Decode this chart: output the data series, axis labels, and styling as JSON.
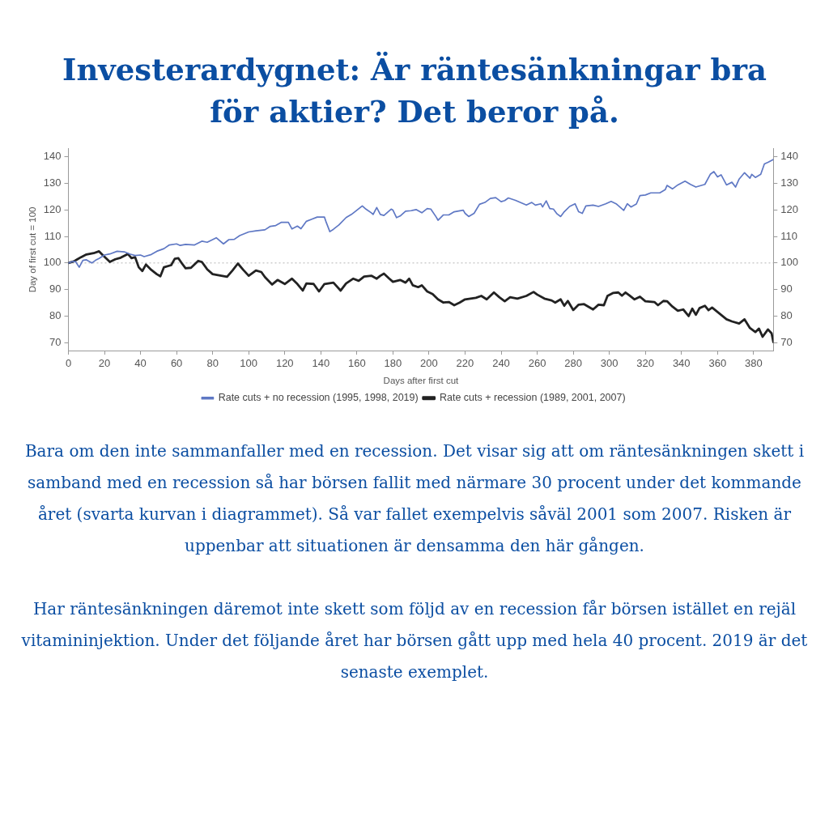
{
  "chart_data": {
    "type": "line",
    "title": "Investerardygnet: Är räntesänkningar bra för aktier? Det beror på.",
    "xlabel": "Days after first cut",
    "ylabel": "Day of first cut = 100",
    "xlim": [
      0,
      391
    ],
    "xticks": [
      0,
      20,
      40,
      60,
      80,
      100,
      120,
      140,
      160,
      180,
      200,
      220,
      240,
      260,
      280,
      300,
      320,
      340,
      360,
      380
    ],
    "ylim": [
      67,
      143
    ],
    "yticks": [
      70,
      80,
      90,
      100,
      110,
      120,
      130,
      140
    ],
    "y2lim": [
      67,
      143
    ],
    "y2ticks": [
      70,
      80,
      90,
      100,
      110,
      120,
      130,
      140
    ],
    "grid": false,
    "legend": "bottom",
    "ref_lines": [
      {
        "axis": "y",
        "value": 100,
        "color": "#b4b4b4",
        "line_style": "dotted"
      }
    ],
    "series": [
      {
        "name": "Rate cuts + no recession (1995, 1998, 2019)",
        "color": "#5f78c4",
        "x": [
          0,
          2,
          4,
          6,
          8,
          10,
          13,
          15,
          17,
          20,
          23,
          27,
          31,
          34,
          37,
          40,
          42,
          46,
          49,
          53,
          56,
          60,
          62,
          65,
          70,
          74,
          77,
          82,
          86,
          89,
          92,
          95,
          100,
          104,
          109,
          112,
          115,
          118,
          122,
          124,
          127,
          129,
          132,
          135,
          138,
          142,
          143,
          145,
          147,
          150,
          154,
          157,
          160,
          163,
          165,
          168,
          169,
          171,
          173,
          175,
          179,
          180,
          182,
          184,
          187,
          190,
          193,
          196,
          199,
          201,
          204,
          205,
          208,
          211,
          214,
          219,
          220,
          222,
          225,
          228,
          231,
          234,
          237,
          240,
          242,
          244,
          248,
          254,
          257,
          259,
          262,
          263,
          265,
          267,
          269,
          271,
          273,
          275,
          278,
          281,
          283,
          285,
          287,
          291,
          294,
          298,
          301,
          304,
          308,
          310,
          312,
          315,
          317,
          320,
          323,
          328,
          331,
          332,
          335,
          338,
          342,
          345,
          348,
          353,
          356,
          358,
          360,
          362,
          365,
          368,
          370,
          372,
          375,
          378,
          379,
          381,
          384,
          386,
          388,
          391
        ],
        "values": [
          100,
          100.5,
          100.5,
          98.4,
          101,
          101.2,
          100,
          101,
          101.7,
          103,
          103.4,
          104.4,
          104.2,
          103.4,
          102.8,
          103,
          102.4,
          103.2,
          104.4,
          105.4,
          106.8,
          107.2,
          106.6,
          107,
          106.8,
          108.2,
          107.8,
          109.5,
          107.2,
          108.8,
          108.9,
          110.3,
          111.7,
          112.1,
          112.5,
          113.8,
          114.1,
          115.3,
          115.3,
          112.8,
          113.9,
          112.9,
          115.7,
          116.5,
          117.3,
          117.3,
          115.3,
          111.8,
          112.7,
          114.3,
          117.1,
          118.3,
          119.9,
          121.5,
          120.3,
          118.9,
          118.3,
          120.9,
          118.3,
          117.9,
          120.3,
          119.9,
          117.1,
          117.7,
          119.5,
          119.7,
          120.1,
          118.9,
          120.5,
          120.3,
          117.3,
          116.1,
          118.1,
          118.1,
          119.3,
          119.9,
          118.7,
          117.5,
          118.7,
          122.1,
          122.8,
          124.3,
          124.6,
          123.1,
          123.5,
          124.5,
          123.6,
          121.8,
          122.8,
          121.8,
          122.3,
          121.1,
          123.4,
          120.5,
          120.3,
          118.5,
          117.5,
          119.3,
          121.3,
          122.3,
          119.3,
          118.7,
          121.5,
          121.8,
          121.3,
          122.3,
          123.2,
          122.2,
          119.8,
          122.3,
          121.1,
          122.2,
          125.4,
          125.6,
          126.4,
          126.4,
          127.6,
          129.2,
          127.9,
          129.4,
          130.8,
          129.6,
          128.6,
          129.6,
          133.4,
          134.4,
          132.4,
          133.2,
          129.4,
          130.4,
          128.6,
          131.6,
          134,
          131.9,
          133.4,
          132.2,
          133.4,
          137.3,
          137.9,
          139
        ]
      },
      {
        "name": "Rate cuts + recession (1989, 2001, 2007)",
        "color": "#222222",
        "x": [
          0,
          3,
          5,
          7,
          10,
          14,
          17,
          19,
          23,
          26,
          29,
          33,
          35,
          37,
          39,
          41,
          43,
          46,
          49,
          51,
          53,
          57,
          59,
          61,
          63,
          65,
          68,
          72,
          74,
          77,
          80,
          83,
          88,
          91,
          94,
          97,
          100,
          104,
          107,
          109,
          113,
          116,
          120,
          124,
          127,
          130,
          132,
          136,
          139,
          142,
          147,
          151,
          154,
          158,
          161,
          164,
          168,
          171,
          173,
          175,
          178,
          180,
          184,
          187,
          189,
          191,
          194,
          196,
          199,
          202,
          205,
          208,
          211,
          214,
          217,
          220,
          223,
          226,
          229,
          232,
          236,
          239,
          242,
          245,
          249,
          254,
          258,
          260,
          264,
          268,
          270,
          273,
          275,
          277,
          280,
          283,
          286,
          291,
          294,
          297,
          299,
          302,
          305,
          307,
          309,
          311,
          314,
          317,
          320,
          325,
          327,
          330,
          332,
          335,
          338,
          341,
          344,
          346,
          348,
          350,
          353,
          355,
          357,
          361,
          365,
          368,
          372,
          375,
          378,
          381,
          383,
          385,
          388,
          390,
          391
        ],
        "values": [
          100,
          100.6,
          101.4,
          102.2,
          103.2,
          103.7,
          104.4,
          103,
          100.4,
          101.4,
          102,
          103.4,
          101.8,
          102.2,
          98.4,
          97,
          99.4,
          97.4,
          95.8,
          95,
          98.4,
          99.2,
          101.6,
          101.8,
          99.8,
          98,
          98.2,
          100.8,
          100.4,
          97.6,
          95.8,
          95.4,
          94.8,
          97.2,
          99.8,
          97.4,
          95.2,
          97.2,
          96.6,
          94.7,
          91.9,
          93.6,
          92.1,
          94.1,
          92.1,
          89.6,
          92.3,
          92.1,
          89.3,
          92.1,
          92.6,
          89.6,
          92.3,
          94.1,
          93.3,
          94.9,
          95.2,
          94.1,
          95.2,
          96,
          94.1,
          92.9,
          93.6,
          92.6,
          94.1,
          91.6,
          90.9,
          91.6,
          89.3,
          88.3,
          86.3,
          85.1,
          85.3,
          84.1,
          85.1,
          86.3,
          86.6,
          86.9,
          87.6,
          86.3,
          88.9,
          87.1,
          85.6,
          87.1,
          86.6,
          87.6,
          89.1,
          88.1,
          86.6,
          85.9,
          85.1,
          86.3,
          83.9,
          85.7,
          82.3,
          84.3,
          84.5,
          82.5,
          84.3,
          84.1,
          87.6,
          88.7,
          88.9,
          87.7,
          88.9,
          87.9,
          86.3,
          87.3,
          85.6,
          85.3,
          84.1,
          85.7,
          85.6,
          83.6,
          82,
          82.5,
          80,
          82.8,
          80.5,
          83,
          83.9,
          82.2,
          83.2,
          81,
          78.8,
          78,
          77.2,
          78.8,
          75.5,
          74,
          75.3,
          72.2,
          75,
          73.5,
          70.2
        ]
      }
    ],
    "annotations": [
      "Bara om den inte sammanfaller med en recession. Det visar sig att om räntesänkningen skett i samband med en recession så har börsen fallit med närmare 30 procent under det kommande året (svarta kurvan i diagrammet). Så var fallet exempelvis såväl 2001 som 2007. Risken är uppenbar att situationen är densamma den här gången.",
      "Har räntesänkningen däremot inte skett som följd av en recession får börsen istället en rejäl vitamininjektion. Under det följande året har börsen gått upp med hela 40 procent. 2019 är det senaste exemplet."
    ]
  }
}
